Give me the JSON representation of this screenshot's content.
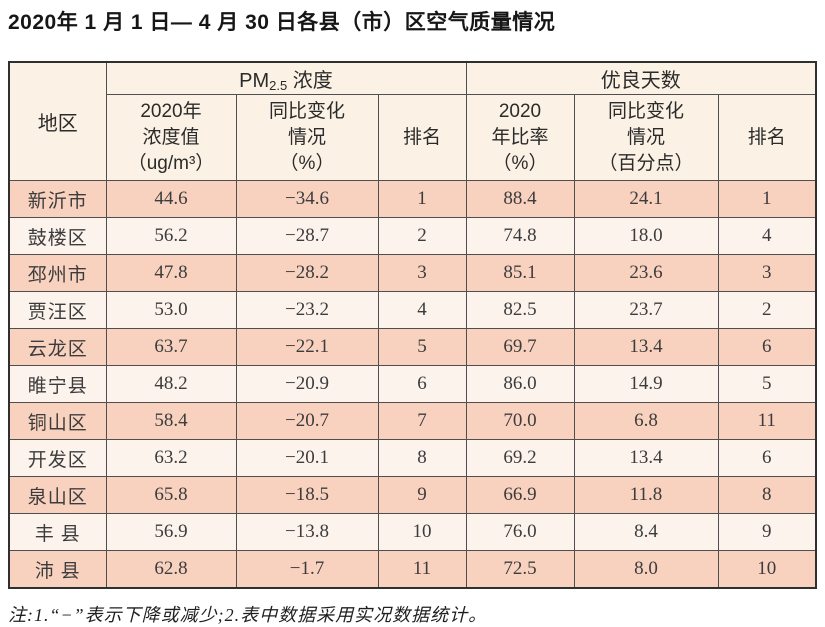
{
  "page": {
    "title": "2020年 1 月 1 日— 4 月 30 日各县（市）区空气质量情况",
    "footnote": "注:1.“−”表示下降或减少;2.表中数据采用实况数据统计。"
  },
  "table": {
    "region_header": "地区",
    "pm25": {
      "prefix": "PM",
      "sub": "2.5",
      "suffix": " 浓度"
    },
    "good_days_header": "优良天数",
    "subheaders": [
      "2020年\n浓度值\n（ug/m³）",
      "同比变化\n情况\n（%）",
      "排名",
      "2020\n年比率\n（%）",
      "同比变化\n情况\n（百分点）",
      "排名"
    ],
    "rows": [
      {
        "region": "新沂市",
        "values": [
          "44.6",
          "−34.6",
          "1",
          "88.4",
          "24.1",
          "1"
        ]
      },
      {
        "region": "鼓楼区",
        "values": [
          "56.2",
          "−28.7",
          "2",
          "74.8",
          "18.0",
          "4"
        ]
      },
      {
        "region": "邳州市",
        "values": [
          "47.8",
          "−28.2",
          "3",
          "85.1",
          "23.6",
          "3"
        ]
      },
      {
        "region": "贾汪区",
        "values": [
          "53.0",
          "−23.2",
          "4",
          "82.5",
          "23.7",
          "2"
        ]
      },
      {
        "region": "云龙区",
        "values": [
          "63.7",
          "−22.1",
          "5",
          "69.7",
          "13.4",
          "6"
        ]
      },
      {
        "region": "睢宁县",
        "values": [
          "48.2",
          "−20.9",
          "6",
          "86.0",
          "14.9",
          "5"
        ]
      },
      {
        "region": "铜山区",
        "values": [
          "58.4",
          "−20.7",
          "7",
          "70.0",
          "6.8",
          "11"
        ]
      },
      {
        "region": "开发区",
        "values": [
          "63.2",
          "−20.1",
          "8",
          "69.2",
          "13.4",
          "6"
        ]
      },
      {
        "region": "泉山区",
        "values": [
          "65.8",
          "−18.5",
          "9",
          "66.9",
          "11.8",
          "8"
        ]
      },
      {
        "region": "丰 县",
        "values": [
          "56.9",
          "−13.8",
          "10",
          "76.0",
          "8.4",
          "9"
        ]
      },
      {
        "region": "沛 县",
        "values": [
          "62.8",
          "−1.7",
          "11",
          "72.5",
          "8.0",
          "10"
        ]
      }
    ]
  },
  "colors": {
    "header_bg": "#fbf1e4",
    "row_odd_bg": "#f8d2bf",
    "row_even_bg": "#fcf3ed",
    "outer_border": "#303030",
    "inner_border": "#4f4f4f"
  }
}
